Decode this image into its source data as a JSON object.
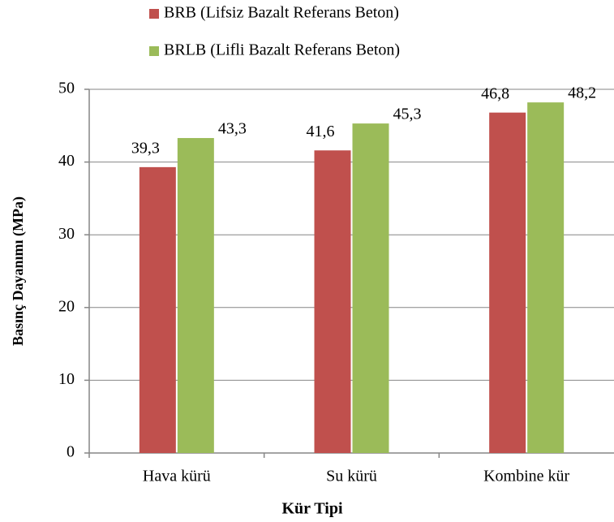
{
  "chart_data": {
    "type": "bar",
    "xlabel": "Kür Tipi",
    "ylabel": "Basınç Dayanımı (MPa)",
    "categories": [
      "Hava kürü",
      "Su kürü",
      "Kombine kür"
    ],
    "series": [
      {
        "name": "BRB (Lifsiz Bazalt Referans Beton)",
        "color": "#c0504d",
        "values": [
          39.3,
          41.6,
          46.8
        ],
        "value_labels": [
          "39,3",
          "41,6",
          "46,8"
        ]
      },
      {
        "name": "BRLB (Lifli Bazalt Referans Beton)",
        "color": "#9bbb59",
        "values": [
          43.3,
          45.3,
          48.2
        ],
        "value_labels": [
          "43,3",
          "45,3",
          "48,2"
        ]
      }
    ],
    "ylim": [
      0,
      50
    ],
    "yticks": [
      0,
      10,
      20,
      30,
      40,
      50
    ],
    "grid": true,
    "legend": "top"
  }
}
